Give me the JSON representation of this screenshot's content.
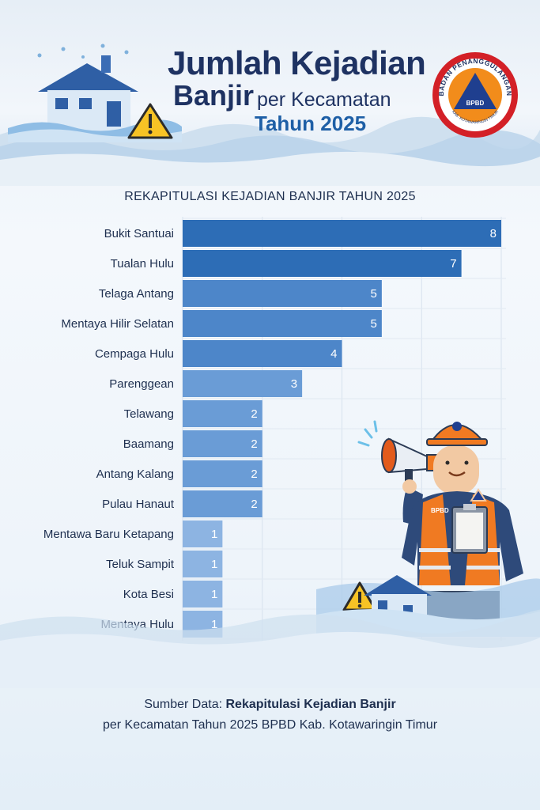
{
  "header": {
    "title_line1": "Jumlah Kejadian",
    "title_line2_bold": "Banjir",
    "title_line2_rest": "per Kecamatan",
    "title_line3": "Tahun 2025"
  },
  "logo": {
    "arc_text": "BADAN PENANGGULANGAN",
    "center_text": "BPBD",
    "bottom_text": "KAB. KOTAWARINGIN TIMUR"
  },
  "worker": {
    "vest_text": "BPBD"
  },
  "chart_data": {
    "type": "bar",
    "orientation": "horizontal",
    "title": "REKAPITULASI KEJADIAN BANJIR  TAHUN 2025",
    "categories": [
      "Bukit Santuai",
      "Tualan Hulu",
      "Telaga Antang",
      "Mentaya Hilir Selatan",
      "Cempaga Hulu",
      "Parenggean",
      "Telawang",
      "Baamang",
      "Antang Kalang",
      "Pulau Hanaut",
      "Mentawa Baru Ketapang",
      "Teluk Sampit",
      "Kota Besi",
      "Mentaya Hulu"
    ],
    "values": [
      8,
      7,
      5,
      5,
      4,
      3,
      2,
      2,
      2,
      2,
      1,
      1,
      1,
      1
    ],
    "xlim": [
      0,
      8
    ],
    "xticks": [
      "0",
      "2",
      "4",
      "6",
      "8"
    ],
    "grid": true,
    "colors": {
      "dark": "#2d6db6",
      "mid": "#4d86c9",
      "light": "#6a9cd6",
      "lighter": "#8db4e2"
    }
  },
  "source": {
    "prefix": "Sumber Data: ",
    "bold": "Rekapitulasi Kejadian Banjir",
    "line2": "per Kecamatan Tahun 2025 BPBD Kab. Kotawaringin Timur"
  }
}
